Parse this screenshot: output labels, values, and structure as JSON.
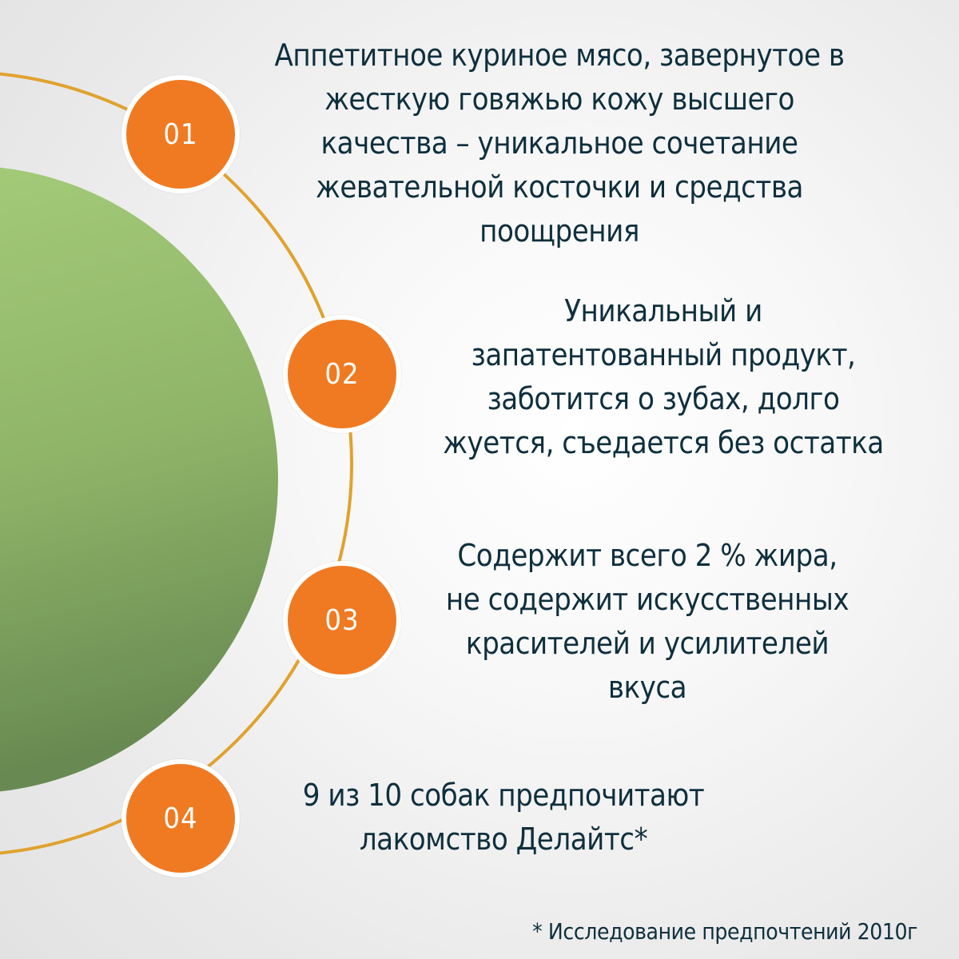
{
  "colors": {
    "accent_orange": "#ef7a22",
    "ring_gold": "#e0a22e",
    "circle_green_light": "#a4cb78",
    "circle_green_dark": "#6d8f55",
    "text_navy": "#0f2f3d"
  },
  "features": [
    {
      "number": "01",
      "text": "Аппетитное куриное мясо, завернутое в\nжесткую говяжью кожу высшего\nкачества – уникальное сочетание\nжевательной косточки и средства\nпоощрения"
    },
    {
      "number": "02",
      "text": "Уникальный и\nзапатентованный продукт,\nзаботится о зубах, долго\nжуется, съедается без остатка"
    },
    {
      "number": "03",
      "text": "Содержит всего 2 % жира,\nне содержит искусственных\nкрасителей и усилителей\nвкуса"
    },
    {
      "number": "04",
      "text": "9 из 10 собак предпочитают\nлакомство Делайтс*"
    }
  ],
  "footnote": "* Исследование предпочтений 2010г"
}
